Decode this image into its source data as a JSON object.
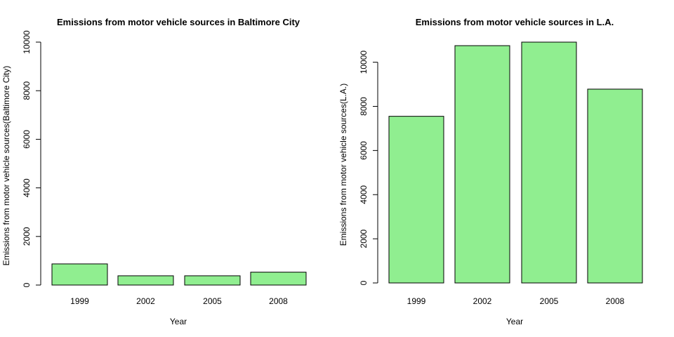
{
  "chart_data": [
    {
      "type": "bar",
      "title": "Emissions from motor vehicle sources in Baltimore City",
      "xlabel": "Year",
      "ylabel": "Emissions from motor vehicle sources(Baltimore City)",
      "categories": [
        "1999",
        "2002",
        "2005",
        "2008"
      ],
      "values": [
        870,
        380,
        380,
        530
      ],
      "ylim": [
        0,
        10000
      ],
      "yticks": [
        "0",
        "2000",
        "4000",
        "6000",
        "8000",
        "10000"
      ],
      "bar_color": "#90EE90",
      "grid": false
    },
    {
      "type": "bar",
      "title": "Emissions from motor vehicle sources in L.A.",
      "xlabel": "Year",
      "ylabel": "Emissions from motor vehicle sources(L.A.)",
      "categories": [
        "1999",
        "2002",
        "2005",
        "2008"
      ],
      "values": [
        7550,
        10750,
        10910,
        8780
      ],
      "ylim": [
        0,
        10910
      ],
      "yticks": [
        "0",
        "2000",
        "4000",
        "6000",
        "8000",
        "10000"
      ],
      "bar_color": "#90EE90",
      "grid": false
    }
  ]
}
